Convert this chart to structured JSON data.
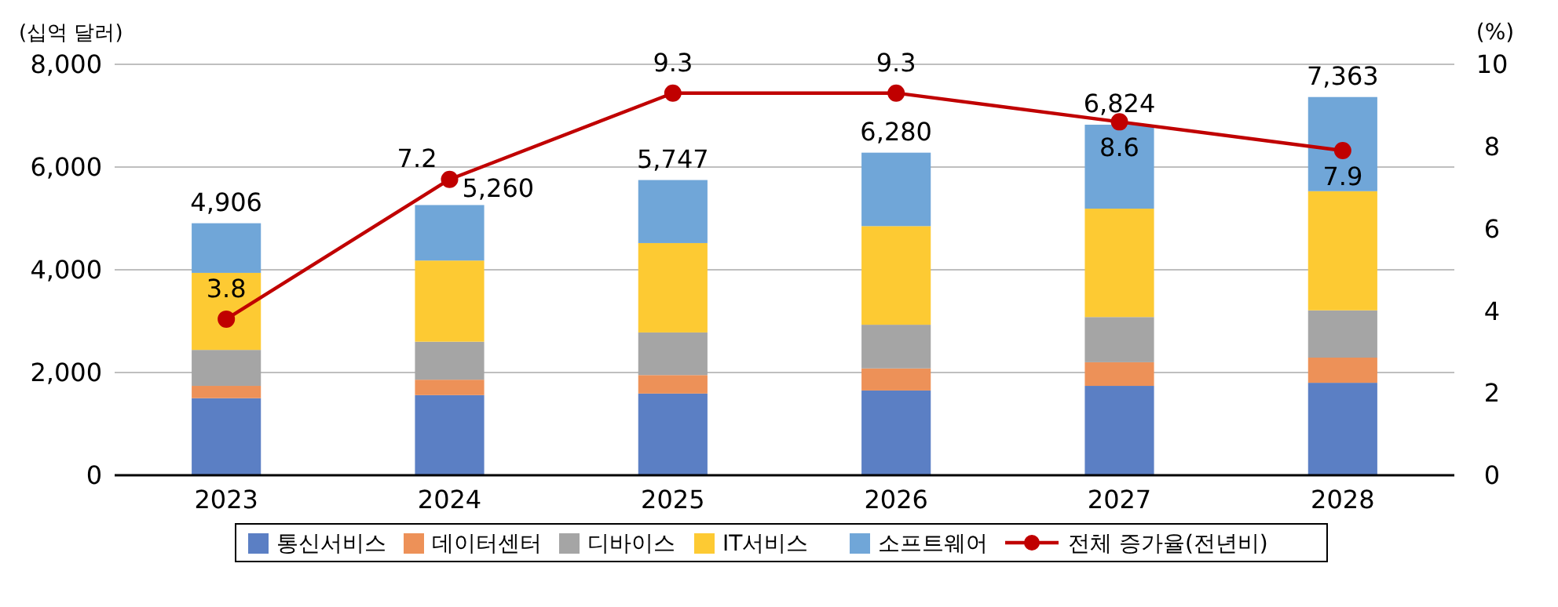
{
  "chart_data": {
    "type": "bar",
    "stacked": true,
    "ylabel": "(십억 달러)",
    "y2label": "(%)",
    "categories": [
      "2023",
      "2024",
      "2025",
      "2026",
      "2027",
      "2028"
    ],
    "series": [
      {
        "name": "통신서비스",
        "color": "#5b7fc4",
        "values": [
          1500,
          1560,
          1590,
          1650,
          1740,
          1800
        ]
      },
      {
        "name": "데이터센터",
        "color": "#ed9158",
        "values": [
          240,
          300,
          360,
          430,
          460,
          490
        ]
      },
      {
        "name": "디바이스",
        "color": "#a5a5a5",
        "values": [
          700,
          740,
          830,
          850,
          880,
          920
        ]
      },
      {
        "name": "IT서비스",
        "color": "#fdca33",
        "values": [
          1500,
          1580,
          1740,
          1920,
          2110,
          2320
        ]
      },
      {
        "name": "소프트웨어",
        "color": "#70a6d8",
        "values": [
          966,
          1080,
          1227,
          1430,
          1634,
          1833
        ]
      },
      {
        "name": "전체 증가율(전년비)",
        "type": "line",
        "axis": "y2",
        "color": "#c00000",
        "marker": "circle",
        "values": [
          3.8,
          7.2,
          9.3,
          9.3,
          8.6,
          7.9
        ],
        "value_labels": [
          "3.8",
          "7.2",
          "9.3",
          "9.3",
          "8.6",
          "7.9"
        ]
      }
    ],
    "totals": [
      "4,906",
      "5,260",
      "5,747",
      "6,280",
      "6,824",
      "7,363"
    ],
    "ylim": [
      0,
      8000
    ],
    "yticks": [
      {
        "value": 0,
        "label": "0"
      },
      {
        "value": 2000,
        "label": "2,000"
      },
      {
        "value": 4000,
        "label": "4,000"
      },
      {
        "value": 6000,
        "label": "6,000"
      },
      {
        "value": 8000,
        "label": "8,000"
      }
    ],
    "y2lim": [
      0,
      10
    ],
    "y2ticks": [
      0,
      2,
      4,
      6,
      8,
      10
    ],
    "grid": "y",
    "legend": "bottom"
  }
}
